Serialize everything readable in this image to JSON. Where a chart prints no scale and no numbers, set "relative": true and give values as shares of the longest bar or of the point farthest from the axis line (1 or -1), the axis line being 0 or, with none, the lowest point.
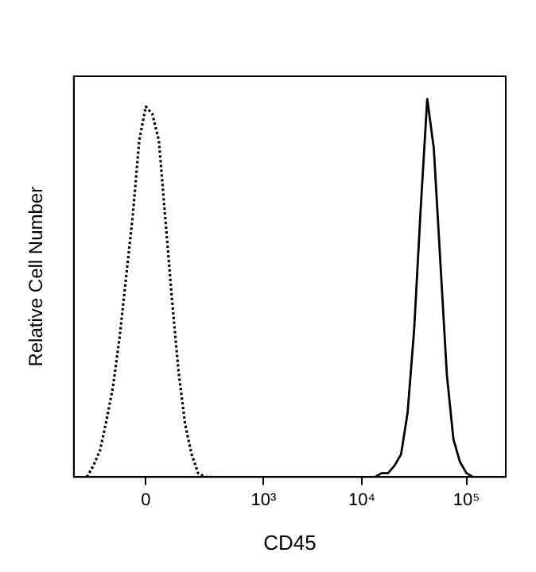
{
  "chart_data": {
    "type": "line",
    "xlabel": "CD45",
    "ylabel": "Relative Cell Number",
    "relative": true,
    "legend": false,
    "grid": false,
    "marker": "none",
    "categories": [
      null,
      null,
      null,
      null,
      null,
      null,
      null,
      null,
      null,
      null,
      null,
      "0",
      null,
      null,
      null,
      null,
      null,
      null,
      null,
      null,
      null,
      null,
      null,
      null,
      null,
      null,
      null,
      null,
      null,
      "10³",
      null,
      null,
      null,
      null,
      null,
      null,
      null,
      null,
      null,
      null,
      null,
      null,
      null,
      null,
      "10⁴",
      null,
      null,
      null,
      null,
      null,
      null,
      null,
      null,
      null,
      null,
      null,
      null,
      null,
      null,
      null,
      "10⁵",
      null,
      null,
      null,
      null,
      null,
      null
    ],
    "series": [
      {
        "color": "#000000",
        "line_style": "dotted",
        "values": [
          null,
          null,
          0,
          0.03,
          0.07,
          0.15,
          0.24,
          0.37,
          0.53,
          0.69,
          0.89,
          0.98,
          0.96,
          0.89,
          0.68,
          0.47,
          0.28,
          0.14,
          0.06,
          0.01,
          0,
          0,
          null,
          null,
          null,
          null,
          null,
          null,
          null,
          null,
          null,
          null,
          null,
          null,
          null,
          null,
          null,
          null,
          null,
          null,
          null,
          null,
          null,
          null,
          null,
          null,
          null,
          null,
          null,
          null,
          null,
          null,
          null,
          null,
          null,
          null,
          null,
          null,
          null,
          null,
          null,
          null,
          null,
          null,
          null,
          null,
          null
        ]
      },
      {
        "color": "#000000",
        "line_style": "solid",
        "values": [
          null,
          null,
          null,
          null,
          null,
          null,
          null,
          null,
          null,
          null,
          null,
          null,
          null,
          null,
          null,
          null,
          null,
          null,
          null,
          null,
          null,
          null,
          null,
          null,
          null,
          null,
          null,
          null,
          null,
          null,
          null,
          null,
          null,
          null,
          null,
          null,
          null,
          null,
          null,
          null,
          null,
          0,
          0,
          0,
          0,
          0,
          0,
          0.01,
          0.01,
          0.03,
          0.06,
          0.17,
          0.39,
          0.71,
          1,
          0.87,
          0.57,
          0.27,
          0.1,
          0.04,
          0.01,
          0,
          0,
          0,
          null,
          null,
          null
        ]
      }
    ]
  }
}
